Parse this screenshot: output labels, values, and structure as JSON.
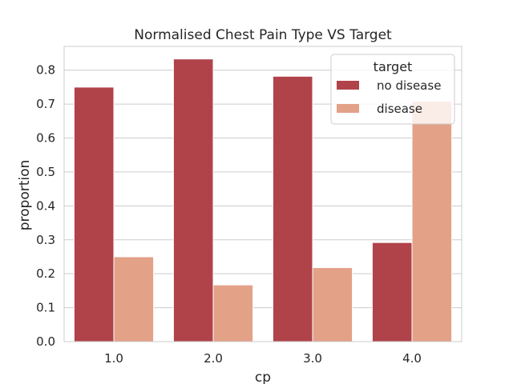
{
  "chart_data": {
    "type": "bar",
    "title": "Normalised Chest Pain Type VS Target",
    "xlabel": "cp",
    "ylabel": "proportion",
    "categories": [
      "1.0",
      "2.0",
      "3.0",
      "4.0"
    ],
    "series": [
      {
        "name": "no disease",
        "color": "#b0434a",
        "values": [
          0.75,
          0.833,
          0.782,
          0.292
        ]
      },
      {
        "name": "disease",
        "color": "#e3a188",
        "values": [
          0.25,
          0.167,
          0.218,
          0.708
        ]
      }
    ],
    "ylim": [
      0,
      0.87
    ],
    "yticks": [
      "0.0",
      "0.1",
      "0.2",
      "0.3",
      "0.4",
      "0.5",
      "0.6",
      "0.7",
      "0.8"
    ],
    "grid": true,
    "legend": {
      "title": "target",
      "placement": "top-right"
    }
  }
}
